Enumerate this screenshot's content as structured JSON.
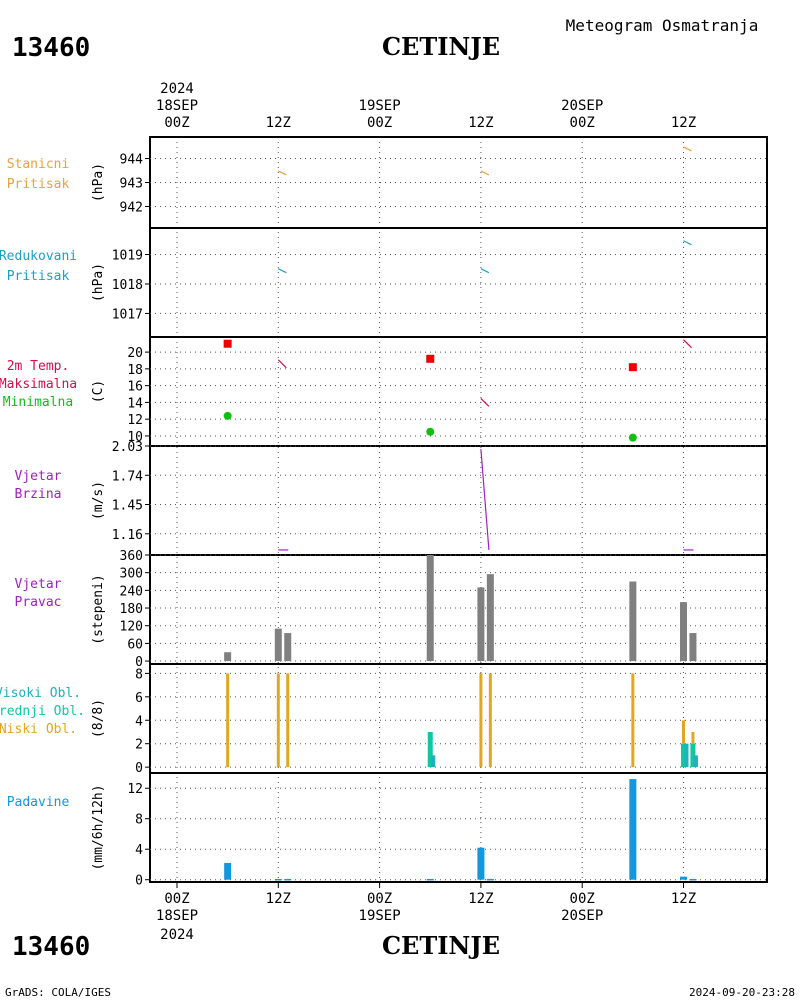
{
  "header": {
    "station_id": "13460",
    "station_name": "CETINJE",
    "title": "Meteogram Osmatranja"
  },
  "footer": {
    "station_id": "13460",
    "station_name": "CETINJE",
    "credit": "GrADS: COLA/IGES",
    "timestamp": "2024-09-20-23:28"
  },
  "time_axis": {
    "year": "2024",
    "top_ticks": [
      {
        "hour": "00Z",
        "date": "18SEP"
      },
      {
        "hour": "12Z",
        "date": ""
      },
      {
        "hour": "00Z",
        "date": "19SEP"
      },
      {
        "hour": "12Z",
        "date": ""
      },
      {
        "hour": "00Z",
        "date": "20SEP"
      },
      {
        "hour": "12Z",
        "date": ""
      }
    ]
  },
  "colors": {
    "pressure": "#e8a33c",
    "reduced": "#1aa0c8",
    "tmax": "#d0104a",
    "tmin": "#10c010",
    "wind": "#a020c0",
    "dir_bar": "#808080",
    "low_cloud": "#e0a820",
    "mid_cloud": "#10c8a0",
    "high_cloud": "#20b0c0",
    "precip": "#1098e0",
    "max_marker": "#f00000"
  },
  "chart_data": [
    {
      "type": "line",
      "panel": "station_pressure",
      "label_lines": [
        "Stanicni",
        "Pritisak"
      ],
      "unit": "(hPa)",
      "yticks": [
        "944",
        "943",
        "942"
      ],
      "ylim": [
        941.1,
        944.9
      ],
      "x_hours": [
        12,
        36,
        60
      ],
      "values": [
        943.4,
        943.4,
        944.4
      ]
    },
    {
      "type": "line",
      "panel": "reduced_pressure",
      "label_lines": [
        "Redukovani",
        "Pritisak"
      ],
      "unit": "(hPa)",
      "yticks": [
        "1019",
        "1018",
        "1017"
      ],
      "ylim": [
        1016.2,
        1019.9
      ],
      "x_hours": [
        12,
        36,
        60
      ],
      "values": [
        1018.45,
        1018.45,
        1019.4
      ]
    },
    {
      "type": "scatter",
      "panel": "temperature",
      "label_lines": [
        "2m Temp.",
        "Maksimalna",
        "Minimalna"
      ],
      "unit": "(C)",
      "yticks": [
        "20",
        "18",
        "16",
        "14",
        "12",
        "10"
      ],
      "ylim": [
        8.8,
        21.8
      ],
      "max_x_hours": [
        6,
        30,
        54
      ],
      "max_values": [
        21.0,
        19.2,
        18.2
      ],
      "min_x_hours": [
        6,
        30,
        54
      ],
      "min_values": [
        12.4,
        10.5,
        9.8
      ],
      "obs_x_hours": [
        12,
        36,
        60
      ],
      "obs_values": [
        18.6,
        14.0,
        21.0
      ]
    },
    {
      "type": "line",
      "panel": "wind_speed",
      "label_lines": [
        "Vjetar",
        "Brzina"
      ],
      "unit": "(m/s)",
      "yticks": [
        "2.03",
        "1.74",
        "1.45",
        "1.16"
      ],
      "ylim": [
        0.95,
        2.03
      ],
      "x_hours": [
        12,
        36,
        60
      ],
      "values": [
        1.0,
        2.0,
        1.0
      ]
    },
    {
      "type": "bar",
      "panel": "wind_direction",
      "label_lines": [
        "Vjetar",
        "Pravac"
      ],
      "unit": "(stepeni)",
      "yticks": [
        "360",
        "300",
        "240",
        "180",
        "120",
        "60",
        "0"
      ],
      "ylim": [
        -10,
        360
      ],
      "x_hours": [
        6,
        12,
        13,
        30,
        36,
        37,
        54,
        60,
        61
      ],
      "values": [
        30,
        110,
        95,
        360,
        250,
        295,
        270,
        200,
        95
      ]
    },
    {
      "type": "bar",
      "panel": "clouds",
      "label_lines": [
        "Visoki Obl.",
        "Srednji Obl.",
        "Niski Obl."
      ],
      "unit": "(8/8)",
      "yticks": [
        "8",
        "6",
        "4",
        "2",
        "0"
      ],
      "ylim": [
        -0.5,
        8.8
      ],
      "x_hours": [
        6,
        12,
        13,
        30,
        36,
        37,
        54,
        60,
        61
      ],
      "series": [
        {
          "name": "Visoki Obl.",
          "values": [
            0,
            0,
            0,
            1,
            0,
            0,
            0,
            2,
            1
          ]
        },
        {
          "name": "Srednji Obl.",
          "values": [
            0,
            0,
            0,
            3,
            0,
            0,
            0,
            2,
            2
          ]
        },
        {
          "name": "Niski Obl.",
          "values": [
            8,
            8,
            8,
            1,
            8,
            8,
            8,
            4,
            3
          ]
        }
      ]
    },
    {
      "type": "bar",
      "panel": "precipitation",
      "label_lines": [
        "Padavine"
      ],
      "unit": "(mm/6h/12h)",
      "yticks": [
        "12",
        "8",
        "4",
        "0"
      ],
      "ylim": [
        -0.3,
        14.0
      ],
      "x_hours": [
        6,
        12,
        13,
        30,
        36,
        37,
        54,
        60,
        61
      ],
      "values": [
        2.2,
        0.1,
        0.1,
        0.1,
        4.2,
        0.1,
        13.2,
        0.4,
        0.1
      ]
    }
  ]
}
